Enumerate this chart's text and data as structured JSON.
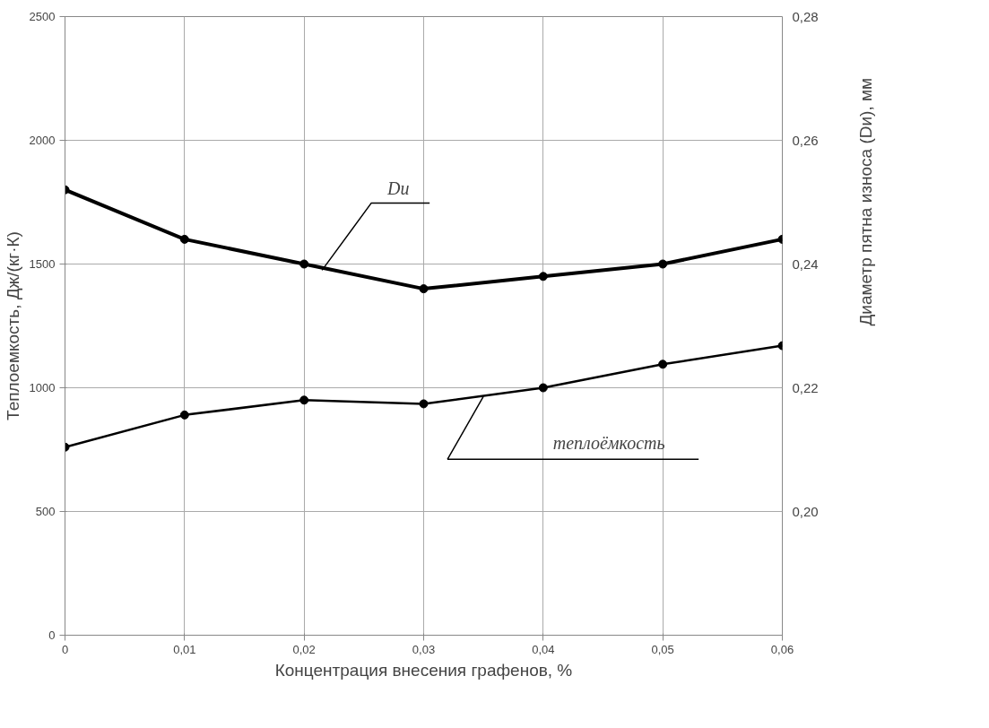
{
  "chart_data": {
    "type": "line",
    "xlabel": "Концентрация внесения графенов, %",
    "ylabel": "Теплоемкость, Дж/(кг·К)",
    "y2label": "Диаметр пятна износа (Dи), мм",
    "x": [
      0,
      0.01,
      0.02,
      0.03,
      0.04,
      0.05,
      0.06
    ],
    "series": [
      {
        "color": "#000000",
        "axis": "y2",
        "values": [
          0.252,
          0.244,
          0.24,
          0.236,
          0.238,
          0.24,
          0.244
        ]
      },
      {
        "color": "#000000",
        "values": [
          760,
          890,
          950,
          935,
          1000,
          1095,
          1170
        ]
      }
    ],
    "annotations": [
      {
        "text": "Dи",
        "x": 0.0215,
        "y": 1475
      },
      {
        "text": "теплоёмкость",
        "x": 0.035,
        "y": 965
      }
    ],
    "xlim": [
      0,
      0.06
    ],
    "xticks": [
      0,
      {
        "value": 0.01,
        "label": "0,01"
      },
      {
        "value": 0.02,
        "label": "0,02"
      },
      {
        "value": 0.03,
        "label": "0,03"
      },
      {
        "value": 0.04,
        "label": "0,04"
      },
      {
        "value": 0.05,
        "label": "0,05"
      },
      {
        "value": 0.06,
        "label": "0,06"
      }
    ],
    "ylim": [
      0,
      2500
    ],
    "yticks": [
      0,
      500,
      1000,
      1500,
      2000,
      2500
    ],
    "y2lim": [
      0.18,
      0.28
    ],
    "y2ticks": [
      {
        "value": 0.2,
        "label": "0,20"
      },
      {
        "value": 0.22,
        "label": "0,22"
      },
      {
        "value": 0.24,
        "label": "0,24"
      },
      {
        "value": 0.26,
        "label": "0,26"
      },
      {
        "value": 0.28,
        "label": "0,28"
      }
    ],
    "grid": true,
    "marker": "circle",
    "line_style": "solid"
  }
}
